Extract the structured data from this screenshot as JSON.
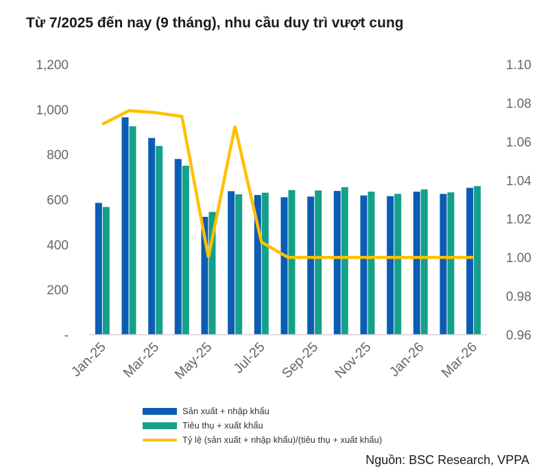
{
  "title": "Từ 7/2025 đến nay (9 tháng), nhu cầu duy trì vượt cung",
  "source": "Nguồn: BSC Research, VPPA",
  "colors": {
    "supply": "#0a5db3",
    "demand": "#14a08a",
    "ratio": "#ffc000"
  },
  "chart_data": {
    "type": "bar",
    "categories": [
      "Jan-25",
      "Feb-25",
      "Mar-25",
      "Apr-25",
      "May-25",
      "Jun-25",
      "Jul-25",
      "Aug-25",
      "Sep-25",
      "Oct-25",
      "Nov-25",
      "Dec-25",
      "Jan-26",
      "Feb-26",
      "Mar-26"
    ],
    "x_tick_labels": [
      "Jan-25",
      "Mar-25",
      "May-25",
      "Jul-25",
      "Sep-25",
      "Nov-25",
      "Jan-26",
      "Mar-26"
    ],
    "x_tick_indices": [
      0,
      2,
      4,
      6,
      8,
      10,
      12,
      14
    ],
    "series": [
      {
        "name": "Sản xuất + nhập khẩu",
        "type": "bar",
        "axis": "left",
        "values": [
          585,
          965,
          873,
          780,
          523,
          637,
          620,
          610,
          613,
          638,
          618,
          615,
          635,
          625,
          652
        ]
      },
      {
        "name": "Tiêu thụ + xuất khẩu",
        "type": "bar",
        "axis": "left",
        "values": [
          567,
          925,
          838,
          750,
          545,
          623,
          630,
          642,
          640,
          655,
          635,
          625,
          645,
          632,
          660
        ]
      },
      {
        "name": "Tỷ lệ (sản xuất + nhập khẩu)/(tiêu thụ + xuất khẩu)",
        "type": "line",
        "axis": "right",
        "values": [
          1.069,
          1.076,
          1.075,
          1.073,
          1.0,
          1.068,
          1.008,
          1.0,
          1.0,
          1.0,
          1.0,
          1.0,
          1.0,
          1.0,
          1.0
        ]
      }
    ],
    "y_left": {
      "min": 0,
      "max": 1200,
      "ticks": [
        0,
        200,
        400,
        600,
        800,
        1000,
        1200
      ],
      "tick_labels": [
        "-",
        "200",
        "400",
        "600",
        "800",
        "1,000",
        "1,200"
      ]
    },
    "y_right": {
      "min": 0.96,
      "max": 1.1,
      "ticks": [
        0.96,
        0.98,
        1.0,
        1.02,
        1.04,
        1.06,
        1.08,
        1.1
      ],
      "tick_labels": [
        "0.96",
        "0.98",
        "1.00",
        "1.02",
        "1.04",
        "1.06",
        "1.08",
        "1.10"
      ]
    },
    "grid": false,
    "legend_position": "bottom"
  }
}
